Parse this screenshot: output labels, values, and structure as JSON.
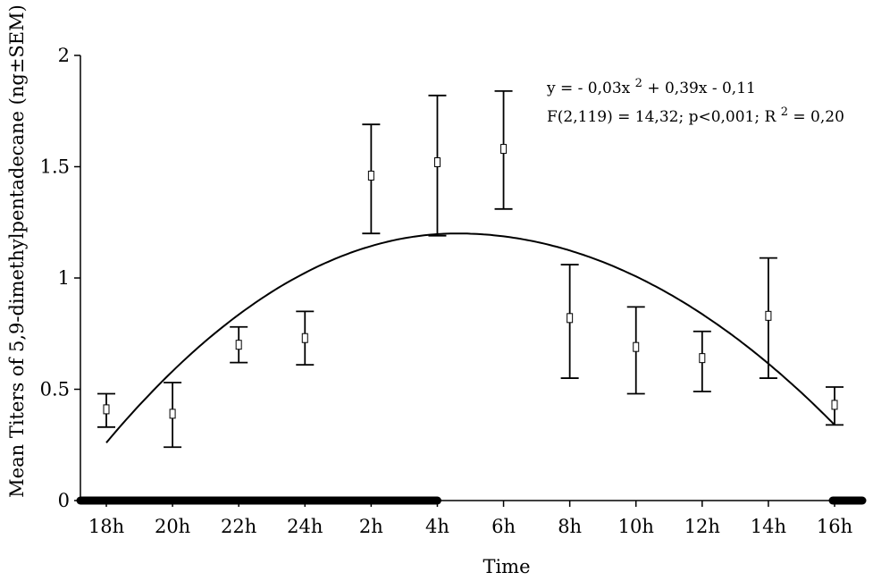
{
  "chart_data": {
    "type": "scatter",
    "title": "",
    "xlabel": "Time",
    "ylabel": "Mean Titers of 5,9-dimethylpentadecane (ng±SEM)",
    "categories": [
      "18h",
      "20h",
      "22h",
      "24h",
      "2h",
      "4h",
      "6h",
      "8h",
      "10h",
      "12h",
      "14h",
      "16h"
    ],
    "yticks": [
      "0",
      "0.5",
      "1",
      "1.5",
      "2"
    ],
    "ylim": [
      0,
      2
    ],
    "grid": false,
    "legend": "none",
    "series": [
      {
        "values": [
          0.41,
          0.39,
          0.7,
          0.73,
          1.46,
          1.52,
          1.58,
          0.82,
          0.69,
          0.64,
          0.83,
          0.43
        ],
        "error_low": [
          0.33,
          0.24,
          0.62,
          0.61,
          1.2,
          1.19,
          1.31,
          0.55,
          0.48,
          0.49,
          0.55,
          0.34
        ],
        "error_high": [
          0.48,
          0.53,
          0.78,
          0.85,
          1.69,
          1.82,
          1.84,
          1.06,
          0.87,
          0.76,
          1.09,
          0.51
        ]
      }
    ],
    "fit_curve": {
      "type": "quadratic",
      "equation": "y = - 0,03x 2 + 0,39x - 0,11",
      "stats": "F(2,119) = 14,32; p<0,001; R 2 = 0,20",
      "x_start": "18h",
      "x_end": "16h",
      "y_start": 0.26,
      "y_peak": 1.2,
      "x_peak_index": 5.3,
      "y_end": 0.34
    },
    "dark_periods": [
      {
        "from": "18h",
        "to": "4h"
      },
      {
        "from": "16h",
        "to": "16h+"
      }
    ],
    "annotations": [
      {
        "text": "y = - 0,03x",
        "sup": "2",
        "suffix": " + 0,39x - 0,11"
      },
      {
        "text": "F(2,119) = 14,32; p<0,001; R",
        "sup": "2",
        "suffix": " = 0,20"
      }
    ]
  }
}
